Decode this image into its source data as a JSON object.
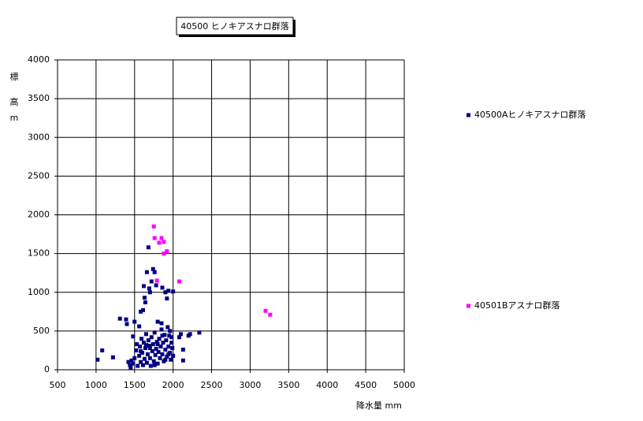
{
  "chart_data": {
    "type": "scatter",
    "title": "40500 ヒノキアスナロ群落",
    "y_label": [
      "標",
      "高",
      "m"
    ],
    "x_label": "降水量 mm",
    "xlim": [
      500,
      5000
    ],
    "ylim": [
      0,
      4000
    ],
    "xticks": [
      500,
      1000,
      1500,
      2000,
      2500,
      3000,
      3500,
      4000,
      4500,
      5000
    ],
    "yticks": [
      0,
      500,
      1000,
      1500,
      2000,
      2500,
      3000,
      3500,
      4000
    ],
    "grid": true,
    "legend": "right",
    "series": [
      {
        "name": "40500Aヒノキアスナロ群落",
        "color": "#000080",
        "x": [
          1020,
          1080,
          1220,
          1310,
          1390,
          1400,
          1420,
          1440,
          1460,
          1480,
          1500,
          1560,
          1580,
          1610,
          1620,
          1630,
          1640,
          1660,
          1680,
          1690,
          1700,
          1720,
          1740,
          1760,
          1780,
          1800,
          1850,
          1900,
          1920,
          1940,
          1860,
          1960,
          2000,
          2080,
          2100,
          2130,
          2130,
          2200,
          2340,
          2220,
          1450,
          1480,
          1500,
          1520,
          1530,
          1540,
          1560,
          1570,
          1580,
          1590,
          1600,
          1610,
          1620,
          1630,
          1640,
          1650,
          1660,
          1670,
          1680,
          1690,
          1700,
          1710,
          1720,
          1730,
          1740,
          1750,
          1760,
          1770,
          1780,
          1790,
          1800,
          1810,
          1820,
          1830,
          1840,
          1850,
          1860,
          1870,
          1880,
          1890,
          1900,
          1910,
          1920,
          1930,
          1940,
          1950,
          1960,
          1970,
          1980,
          1990,
          2000,
          1980,
          1900,
          1760,
          1700,
          1650,
          1580,
          1860,
          1940,
          1800
        ],
        "values": [
          130,
          250,
          160,
          660,
          650,
          590,
          100,
          60,
          120,
          430,
          620,
          560,
          750,
          770,
          1080,
          930,
          870,
          1260,
          1580,
          1050,
          1000,
          1140,
          1300,
          1260,
          1090,
          620,
          600,
          1000,
          920,
          1020,
          1060,
          500,
          1010,
          420,
          460,
          120,
          260,
          440,
          480,
          460,
          30,
          80,
          150,
          250,
          330,
          50,
          180,
          300,
          100,
          400,
          220,
          60,
          350,
          140,
          280,
          460,
          90,
          200,
          380,
          310,
          150,
          50,
          420,
          240,
          330,
          110,
          480,
          190,
          270,
          360,
          80,
          230,
          400,
          150,
          300,
          520,
          200,
          350,
          110,
          450,
          260,
          380,
          170,
          550,
          300,
          440,
          220,
          130,
          350,
          280,
          180,
          420,
          130,
          60,
          280,
          320,
          240,
          440,
          200,
          330
        ]
      },
      {
        "name": "40501Bアスナロ群落",
        "color": "#ff00ff",
        "x": [
          1750,
          1760,
          1820,
          1850,
          1880,
          1880,
          1920,
          1790,
          2080,
          3200,
          3260
        ],
        "values": [
          1850,
          1700,
          1640,
          1700,
          1650,
          1500,
          1530,
          1150,
          1140,
          760,
          710
        ]
      }
    ]
  }
}
